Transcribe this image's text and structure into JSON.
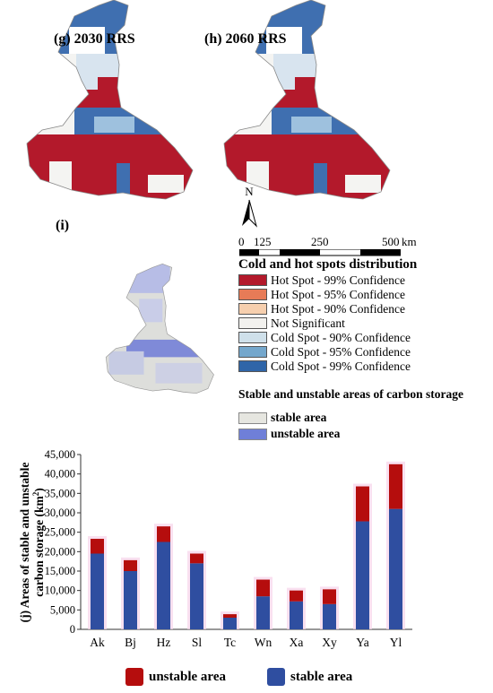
{
  "maps": {
    "panel_g": {
      "label": "(g) 2030 RRS"
    },
    "panel_h": {
      "label": "(h) 2060 RRS"
    },
    "panel_i": {
      "label": "(i)"
    }
  },
  "north_arrow": {
    "letter": "N"
  },
  "scale_bar": {
    "labels": [
      "0",
      "125",
      "250",
      "500"
    ],
    "unit": "km"
  },
  "hotspot_legend": {
    "title": "Cold and hot spots distribution",
    "items": [
      {
        "label": "Hot Spot - 99% Confidence",
        "color": "#b3192b"
      },
      {
        "label": "Hot Spot - 95% Confidence",
        "color": "#e77b57"
      },
      {
        "label": "Hot Spot - 90% Confidence",
        "color": "#f6cfae"
      },
      {
        "label": "Not Significant",
        "color": "#f2f1ee"
      },
      {
        "label": "Cold Spot - 90% Confidence",
        "color": "#cfe0ea"
      },
      {
        "label": "Cold Spot - 95% Confidence",
        "color": "#74a7cc"
      },
      {
        "label": "Cold Spot - 99% Confidence",
        "color": "#2f65a8"
      }
    ]
  },
  "stability_legend": {
    "title": "Stable and unstable areas of carbon storage",
    "items": [
      {
        "label": "stable area",
        "color": "#e6e6e0"
      },
      {
        "label": "unstable area",
        "color": "#6f7fd8"
      }
    ]
  },
  "chart_data": {
    "type": "bar",
    "stacked": true,
    "panel_label": "(j)",
    "ylabel_line1": "Areas of stable and unstable",
    "ylabel_line2": "carbon storage (km",
    "ylabel_sup": "2",
    "ylabel_tail": ")",
    "ylim": [
      0,
      45000
    ],
    "yticks": [
      "0",
      "5,000",
      "10,000",
      "15,000",
      "20,000",
      "25,000",
      "30,000",
      "35,000",
      "40,000",
      "45,000"
    ],
    "categories": [
      "Ak",
      "Bj",
      "Hz",
      "Sl",
      "Tc",
      "Wn",
      "Xa",
      "Xy",
      "Ya",
      "Yl"
    ],
    "series": [
      {
        "name": "stable area",
        "color": "#2f4ea0",
        "values": [
          19500,
          15000,
          22500,
          17000,
          3000,
          8500,
          7200,
          6500,
          27800,
          31000
        ]
      },
      {
        "name": "unstable area",
        "color": "#b50d0d",
        "values": [
          3800,
          2800,
          4000,
          2500,
          900,
          4300,
          2800,
          3800,
          9000,
          11500
        ]
      }
    ],
    "legend": [
      {
        "label": "unstable area",
        "color": "#b50d0d"
      },
      {
        "label": "stable area",
        "color": "#2f4ea0"
      }
    ]
  }
}
